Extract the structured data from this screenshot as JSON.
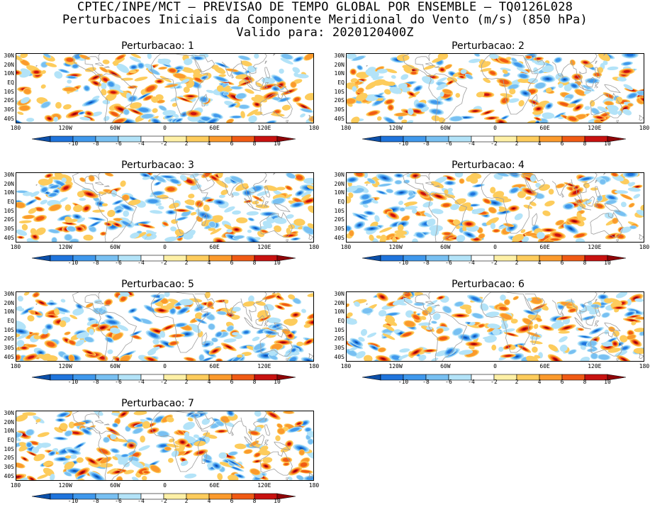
{
  "header": {
    "line1": "CPTEC/INPE/MCT – PREVISAO DE TEMPO GLOBAL POR ENSEMBLE – TQ0126L028",
    "line2": "Perturbacoes Iniciais da Componente Meridional do Vento (m/s) (850 hPa)",
    "line3": "Valido para: 2020120400Z"
  },
  "panels": [
    {
      "title": "Perturbacao: 1"
    },
    {
      "title": "Perturbacao: 2"
    },
    {
      "title": "Perturbacao: 3"
    },
    {
      "title": "Perturbacao: 4"
    },
    {
      "title": "Perturbacao: 5"
    },
    {
      "title": "Perturbacao: 6"
    },
    {
      "title": "Perturbacao: 7"
    }
  ],
  "map_axes": {
    "lat_labels": [
      "30N",
      "20N",
      "10N",
      "EQ",
      "10S",
      "20S",
      "30S",
      "40S"
    ],
    "lon_labels": [
      "180",
      "120W",
      "60W",
      "0",
      "60E",
      "120E",
      "180"
    ],
    "lat_range": [
      -45,
      33
    ],
    "lon_range": [
      -180,
      180
    ]
  },
  "colorbar": {
    "labels": [
      "-10",
      "-8",
      "-6",
      "-4",
      "-2",
      "2",
      "4",
      "6",
      "8",
      "10"
    ],
    "colors": [
      "#0c4fa8",
      "#1f74dc",
      "#3f98ec",
      "#78c0f2",
      "#b3e3f8",
      "#ffffff",
      "#fef0a6",
      "#fdcc5c",
      "#fb9a2c",
      "#f05a14",
      "#c81210",
      "#8e0508"
    ],
    "units": "m/s"
  },
  "colors": {
    "coastline": "#9e9e9e",
    "frame": "#000000"
  }
}
